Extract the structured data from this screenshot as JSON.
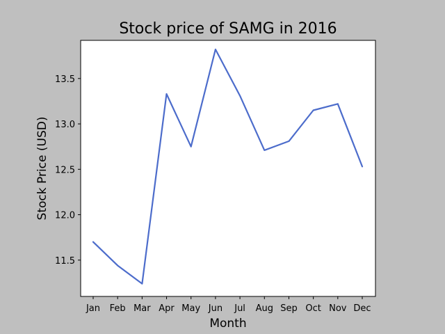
{
  "chart_data": {
    "type": "line",
    "title": "Stock price of SAMG in 2016",
    "xlabel": "Month",
    "ylabel": "Stock Price (USD)",
    "categories": [
      "Jan",
      "Feb",
      "Mar",
      "Apr",
      "May",
      "Jun",
      "Jul",
      "Aug",
      "Sep",
      "Oct",
      "Nov",
      "Dec"
    ],
    "series": [
      {
        "values": [
          11.7,
          11.44,
          11.24,
          13.33,
          12.75,
          13.82,
          13.31,
          12.71,
          12.81,
          13.15,
          13.22,
          12.53
        ]
      }
    ],
    "yticks": [
      "11.5",
      "12.0",
      "12.5",
      "13.0",
      "13.5"
    ],
    "ylim": [
      11.1,
      13.92
    ],
    "grid": false,
    "colors": {
      "line": "#4c6ccb",
      "figure_background": "#bfbfbf",
      "plot_background": "#ffffff"
    }
  }
}
